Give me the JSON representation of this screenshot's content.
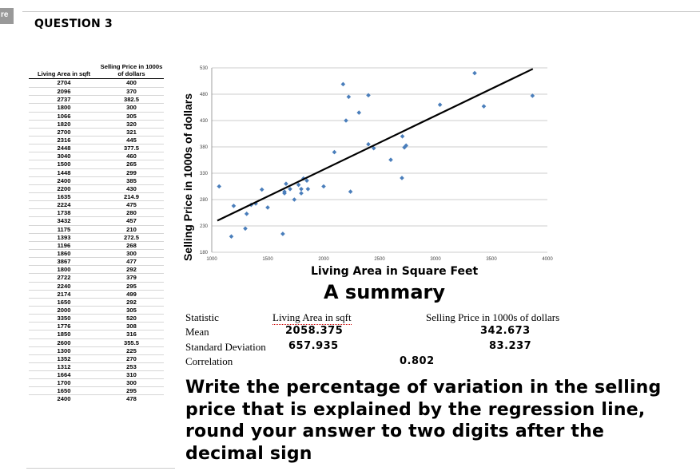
{
  "corner_tab": "re",
  "question_title": "QUESTION 3",
  "table": {
    "headers": [
      "Living Area in sqft",
      "Selling  Price in 1000s of dollars"
    ],
    "rows": [
      [
        "2704",
        "400"
      ],
      [
        "2096",
        "370"
      ],
      [
        "2737",
        "382.5"
      ],
      [
        "1800",
        "300"
      ],
      [
        "1066",
        "305"
      ],
      [
        "1820",
        "320"
      ],
      [
        "2700",
        "321"
      ],
      [
        "2316",
        "445"
      ],
      [
        "2448",
        "377.5"
      ],
      [
        "3040",
        "460"
      ],
      [
        "1500",
        "265"
      ],
      [
        "1448",
        "299"
      ],
      [
        "2400",
        "385"
      ],
      [
        "2200",
        "430"
      ],
      [
        "1635",
        "214.9"
      ],
      [
        "2224",
        "475"
      ],
      [
        "1738",
        "280"
      ],
      [
        "3432",
        "457"
      ],
      [
        "1175",
        "210"
      ],
      [
        "1393",
        "272.5"
      ],
      [
        "1196",
        "268"
      ],
      [
        "1860",
        "300"
      ],
      [
        "3867",
        "477"
      ],
      [
        "1800",
        "292"
      ],
      [
        "2722",
        "379"
      ],
      [
        "2240",
        "295"
      ],
      [
        "2174",
        "499"
      ],
      [
        "1650",
        "292"
      ],
      [
        "2000",
        "305"
      ],
      [
        "3350",
        "520"
      ],
      [
        "1776",
        "308"
      ],
      [
        "1850",
        "316"
      ],
      [
        "2600",
        "355.5"
      ],
      [
        "1300",
        "225"
      ],
      [
        "1352",
        "270"
      ],
      [
        "1312",
        "253"
      ],
      [
        "1664",
        "310"
      ],
      [
        "1700",
        "300"
      ],
      [
        "1650",
        "295"
      ],
      [
        "2400",
        "478"
      ]
    ]
  },
  "chart_data": {
    "type": "scatter",
    "title": "",
    "xlabel": "Living Area in Square Feet",
    "ylabel": "Selling Price in 1000s of dollars",
    "xlim": [
      1000,
      4000
    ],
    "ylim": [
      180,
      530
    ],
    "xticks": [
      1000,
      1500,
      2000,
      2500,
      3000,
      3500,
      4000
    ],
    "yticks": [
      180,
      230,
      280,
      330,
      380,
      430,
      480,
      530
    ],
    "grid": "horizontal",
    "marker_color": "#4a7ebb",
    "trendline": {
      "x": [
        1050,
        3870
      ],
      "y": [
        240,
        528
      ]
    },
    "points": [
      [
        2704,
        400
      ],
      [
        2096,
        370
      ],
      [
        2737,
        382.5
      ],
      [
        1800,
        300
      ],
      [
        1066,
        305
      ],
      [
        1820,
        320
      ],
      [
        2700,
        321
      ],
      [
        2316,
        445
      ],
      [
        2448,
        377.5
      ],
      [
        3040,
        460
      ],
      [
        1500,
        265
      ],
      [
        1448,
        299
      ],
      [
        2400,
        385
      ],
      [
        2200,
        430
      ],
      [
        1635,
        214.9
      ],
      [
        2224,
        475
      ],
      [
        1738,
        280
      ],
      [
        3432,
        457
      ],
      [
        1175,
        210
      ],
      [
        1393,
        272.5
      ],
      [
        1196,
        268
      ],
      [
        1860,
        300
      ],
      [
        3867,
        477
      ],
      [
        1800,
        292
      ],
      [
        2722,
        379
      ],
      [
        2240,
        295
      ],
      [
        2174,
        499
      ],
      [
        1650,
        292
      ],
      [
        2000,
        305
      ],
      [
        3350,
        520
      ],
      [
        1776,
        308
      ],
      [
        1850,
        316
      ],
      [
        2600,
        355.5
      ],
      [
        1300,
        225
      ],
      [
        1352,
        270
      ],
      [
        1312,
        253
      ],
      [
        1664,
        310
      ],
      [
        1700,
        300
      ],
      [
        1650,
        295
      ],
      [
        2400,
        478
      ]
    ]
  },
  "summary": {
    "title": "A summary",
    "col_statistic": "Statistic",
    "col_area": "Living Area in sqft",
    "col_price": "Selling Price in 1000s of dollars",
    "mean_label": "Mean",
    "mean_area": "2058.375",
    "mean_price": "342.673",
    "sd_label": "Standard Deviation",
    "sd_area": "657.935",
    "sd_price": "83.237",
    "corr_label": "Correlation",
    "corr_value": "0.802"
  },
  "question_text": "Write the percentage of variation in the selling price that is explained by the regression line, round your answer to two digits after the decimal sign"
}
